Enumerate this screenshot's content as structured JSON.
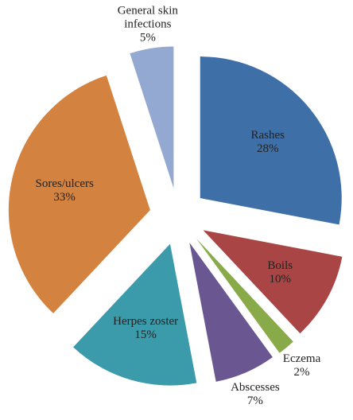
{
  "chart_data": {
    "type": "pie",
    "categories": [
      "Rashes",
      "Boils",
      "Eczema",
      "Abscesses",
      "Herpes zoster",
      "Sores/ulcers",
      "General skin infections"
    ],
    "values": [
      28,
      10,
      2,
      7,
      15,
      33,
      5
    ],
    "value_labels": [
      "28%",
      "10%",
      "2%",
      "7%",
      "15%",
      "33%",
      "5%"
    ],
    "colors": [
      "#3e6fa7",
      "#a94545",
      "#88aa48",
      "#6a5791",
      "#3b9bab",
      "#d3823f",
      "#94a9d2"
    ],
    "exploded": true
  }
}
